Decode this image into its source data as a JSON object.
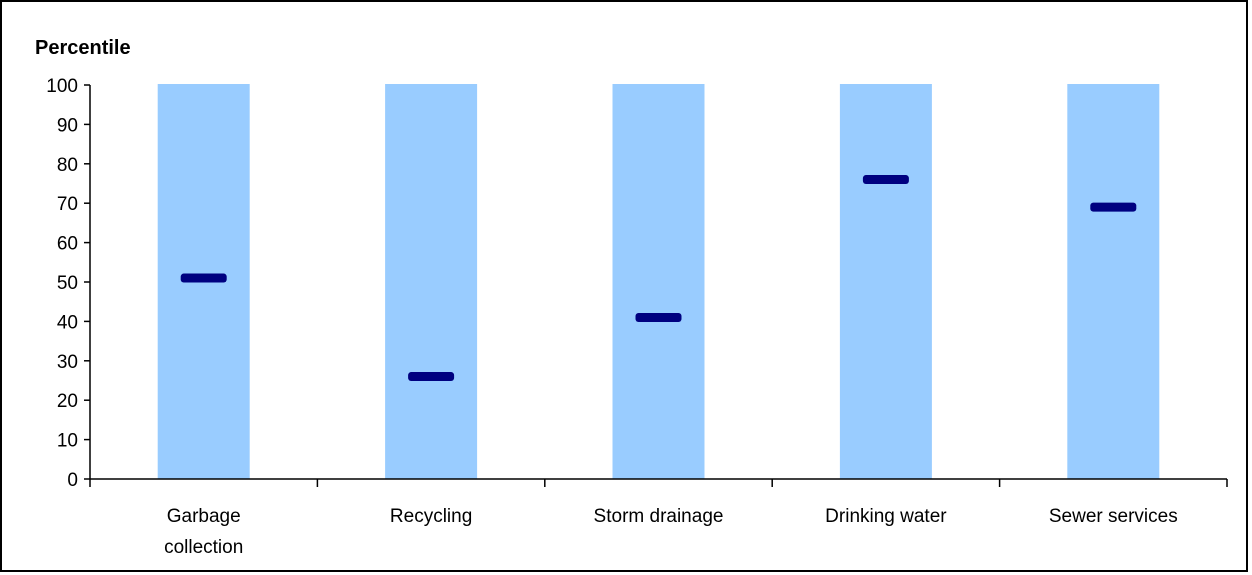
{
  "chart_data": {
    "type": "bar",
    "title": "",
    "xlabel": "",
    "ylabel": "Percentile",
    "ylim": [
      0,
      100
    ],
    "yticks": [
      0,
      10,
      20,
      30,
      40,
      50,
      60,
      70,
      80,
      90,
      100
    ],
    "grid": false,
    "categories": [
      [
        "Garbage",
        "collection"
      ],
      [
        "Recycling"
      ],
      [
        "Storm drainage"
      ],
      [
        "Drinking water"
      ],
      [
        "Sewer services"
      ]
    ],
    "series": [
      {
        "type": "range-bar",
        "low": [
          0,
          0,
          0,
          0,
          0
        ],
        "high": [
          100,
          100,
          100,
          100,
          100
        ],
        "color": "#99ccff"
      },
      {
        "type": "marker",
        "values": [
          51,
          26,
          41,
          76,
          69
        ],
        "color": "#000080"
      }
    ]
  }
}
